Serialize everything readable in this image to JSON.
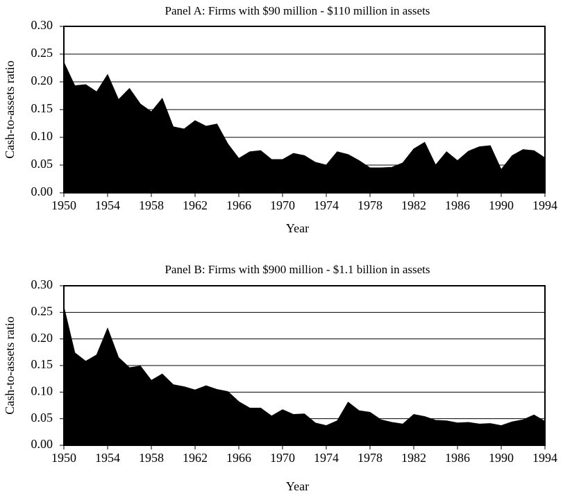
{
  "chart_data": [
    {
      "type": "area",
      "title": "Panel A:  Firms with $90 million - $110 million in assets",
      "xlabel": "Year",
      "ylabel": "Cash-to-assets ratio",
      "x": [
        1950,
        1951,
        1952,
        1953,
        1954,
        1955,
        1956,
        1957,
        1958,
        1959,
        1960,
        1961,
        1962,
        1963,
        1964,
        1965,
        1966,
        1967,
        1968,
        1969,
        1970,
        1971,
        1972,
        1973,
        1974,
        1975,
        1976,
        1977,
        1978,
        1979,
        1980,
        1981,
        1982,
        1983,
        1984,
        1985,
        1986,
        1987,
        1988,
        1989,
        1990,
        1991,
        1992,
        1993,
        1994
      ],
      "values": [
        0.235,
        0.193,
        0.195,
        0.182,
        0.213,
        0.168,
        0.188,
        0.16,
        0.146,
        0.17,
        0.119,
        0.115,
        0.13,
        0.12,
        0.124,
        0.088,
        0.062,
        0.074,
        0.076,
        0.06,
        0.06,
        0.071,
        0.067,
        0.055,
        0.05,
        0.074,
        0.069,
        0.058,
        0.045,
        0.045,
        0.046,
        0.054,
        0.079,
        0.091,
        0.05,
        0.074,
        0.058,
        0.075,
        0.083,
        0.085,
        0.042,
        0.067,
        0.078,
        0.076,
        0.063
      ],
      "color": "#000000",
      "xlim": [
        1950,
        1994
      ],
      "xticks": [
        1950,
        1954,
        1958,
        1962,
        1966,
        1970,
        1974,
        1978,
        1982,
        1986,
        1990,
        1994
      ],
      "ylim": [
        0,
        0.3
      ],
      "yticks": [
        {
          "value": 0,
          "label": "0.00"
        },
        {
          "value": 0.05,
          "label": "0.05"
        },
        {
          "value": 0.1,
          "label": "0.10"
        },
        {
          "value": 0.15,
          "label": "0.15"
        },
        {
          "value": 0.2,
          "label": "0.20"
        },
        {
          "value": 0.25,
          "label": "0.25"
        },
        {
          "value": 0.3,
          "label": "0.30"
        }
      ],
      "grid": true
    },
    {
      "type": "area",
      "title": "Panel B:  Firms with $900 million - $1.1 billion in assets",
      "xlabel": "Year",
      "ylabel": "Cash-to-assets ratio",
      "x": [
        1950,
        1951,
        1952,
        1953,
        1954,
        1955,
        1956,
        1957,
        1958,
        1959,
        1960,
        1961,
        1962,
        1963,
        1964,
        1965,
        1966,
        1967,
        1968,
        1969,
        1970,
        1971,
        1972,
        1973,
        1974,
        1975,
        1976,
        1977,
        1978,
        1979,
        1980,
        1981,
        1982,
        1983,
        1984,
        1985,
        1986,
        1987,
        1988,
        1989,
        1990,
        1991,
        1992,
        1993,
        1994
      ],
      "values": [
        0.26,
        0.174,
        0.158,
        0.17,
        0.22,
        0.165,
        0.146,
        0.149,
        0.122,
        0.134,
        0.114,
        0.11,
        0.104,
        0.112,
        0.105,
        0.101,
        0.082,
        0.07,
        0.07,
        0.055,
        0.067,
        0.058,
        0.059,
        0.042,
        0.037,
        0.046,
        0.081,
        0.065,
        0.062,
        0.048,
        0.043,
        0.04,
        0.058,
        0.054,
        0.047,
        0.046,
        0.042,
        0.043,
        0.04,
        0.041,
        0.037,
        0.044,
        0.048,
        0.057,
        0.045
      ],
      "color": "#000000",
      "xlim": [
        1950,
        1994
      ],
      "xticks": [
        1950,
        1954,
        1958,
        1962,
        1966,
        1970,
        1974,
        1978,
        1982,
        1986,
        1990,
        1994
      ],
      "ylim": [
        0,
        0.3
      ],
      "yticks": [
        {
          "value": 0,
          "label": "0.00"
        },
        {
          "value": 0.05,
          "label": "0.05"
        },
        {
          "value": 0.1,
          "label": "0.10"
        },
        {
          "value": 0.15,
          "label": "0.15"
        },
        {
          "value": 0.2,
          "label": "0.20"
        },
        {
          "value": 0.25,
          "label": "0.25"
        },
        {
          "value": 0.3,
          "label": "0.30"
        }
      ],
      "grid": true
    }
  ]
}
